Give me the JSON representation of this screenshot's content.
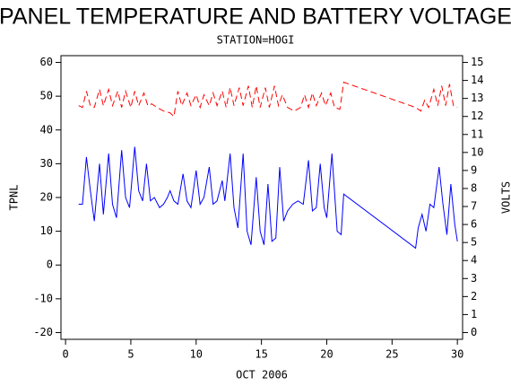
{
  "chart_data": {
    "type": "line",
    "title": "PANEL TEMPERATURE AND BATTERY VOLTAGE",
    "subtitle": "STATION=HOGI",
    "x_label": "OCT 2006",
    "y_label": "TPNL",
    "y2_label": "VOLTS",
    "xlim": [
      -0.35,
      30.4
    ],
    "xticks": [
      0,
      5,
      10,
      15,
      20,
      25,
      30
    ],
    "ylim": [
      -22,
      62
    ],
    "yticks": [
      -20,
      -10,
      0,
      10,
      20,
      30,
      40,
      50,
      60
    ],
    "y2lim": [
      -0.375,
      15.375
    ],
    "y2ticks": [
      0,
      1,
      2,
      3,
      4,
      5,
      6,
      7,
      8,
      9,
      10,
      11,
      12,
      13,
      14,
      15
    ],
    "series": [
      {
        "name": "TPNL",
        "color": "#0000ff",
        "line_style": "solid",
        "x": [
          1.0,
          1.3,
          1.6,
          1.9,
          2.2,
          2.6,
          2.9,
          3.3,
          3.6,
          3.9,
          4.3,
          4.6,
          4.9,
          5.3,
          5.6,
          5.9,
          6.2,
          6.5,
          6.8,
          7.2,
          7.5,
          7.8,
          8.0,
          8.3,
          8.6,
          9.0,
          9.3,
          9.6,
          10.0,
          10.3,
          10.6,
          11.0,
          11.3,
          11.6,
          12.0,
          12.2,
          12.6,
          12.9,
          13.2,
          13.6,
          13.9,
          14.2,
          14.6,
          14.9,
          15.2,
          15.5,
          15.8,
          16.1,
          16.4,
          16.7,
          17.0,
          17.4,
          17.8,
          18.2,
          18.6,
          18.9,
          19.2,
          19.5,
          19.8,
          20.0,
          20.4,
          20.8,
          21.1,
          21.3,
          26.8,
          27.0,
          27.3,
          27.6,
          27.9,
          28.2,
          28.6,
          28.9,
          29.2,
          29.5,
          29.8,
          30.0
        ],
        "values": [
          18,
          18,
          32,
          22,
          13,
          30,
          15,
          33,
          18,
          14,
          34,
          20,
          17,
          35,
          22,
          19,
          30,
          19,
          20,
          17,
          18,
          20,
          22,
          19,
          18,
          27,
          19,
          17,
          28,
          18,
          20,
          29,
          18,
          19,
          25,
          19,
          33,
          17,
          11,
          33,
          10,
          6,
          26,
          10,
          6,
          24,
          7,
          8,
          29,
          13,
          16,
          18,
          19,
          18,
          31,
          16,
          17,
          30,
          17,
          14,
          33,
          10,
          9,
          21,
          5,
          11,
          15,
          10,
          18,
          17,
          29,
          18,
          9,
          24,
          12,
          7
        ]
      },
      {
        "name": "VOLTS",
        "color": "#ff0000",
        "line_style": "dashed",
        "axis": "y2",
        "x": [
          1.0,
          1.3,
          1.6,
          1.9,
          2.2,
          2.6,
          2.9,
          3.3,
          3.6,
          4.0,
          4.3,
          4.6,
          5.0,
          5.3,
          5.6,
          6.0,
          6.3,
          6.6,
          7.0,
          7.5,
          8.0,
          8.3,
          8.6,
          8.9,
          9.3,
          9.6,
          10.0,
          10.3,
          10.6,
          11.0,
          11.3,
          11.6,
          12.0,
          12.3,
          12.6,
          12.9,
          13.3,
          13.6,
          14.0,
          14.3,
          14.6,
          14.9,
          15.3,
          15.6,
          16.0,
          16.3,
          16.6,
          17.0,
          17.5,
          18.0,
          18.3,
          18.6,
          18.9,
          19.2,
          19.6,
          19.9,
          20.3,
          20.6,
          21.0,
          21.3,
          26.8,
          27.2,
          27.5,
          27.8,
          28.2,
          28.5,
          28.8,
          29.1,
          29.4,
          29.7,
          30.0
        ],
        "values": [
          12.6,
          12.5,
          13.4,
          12.6,
          12.5,
          13.5,
          12.6,
          13.5,
          12.6,
          13.4,
          12.5,
          13.4,
          12.5,
          13.4,
          12.6,
          13.3,
          12.6,
          12.7,
          12.5,
          12.3,
          12.2,
          12.0,
          13.4,
          12.6,
          13.3,
          12.6,
          13.2,
          12.5,
          13.2,
          12.6,
          13.3,
          12.6,
          13.4,
          12.5,
          13.6,
          12.6,
          13.6,
          12.6,
          13.7,
          12.5,
          13.7,
          12.5,
          13.6,
          12.5,
          13.7,
          12.6,
          13.2,
          12.5,
          12.3,
          12.5,
          13.2,
          12.5,
          13.3,
          12.6,
          13.3,
          12.6,
          13.3,
          12.5,
          12.4,
          13.9,
          12.5,
          12.3,
          12.9,
          12.5,
          13.5,
          12.6,
          13.7,
          12.6,
          13.8,
          12.6,
          12.5
        ]
      }
    ]
  }
}
